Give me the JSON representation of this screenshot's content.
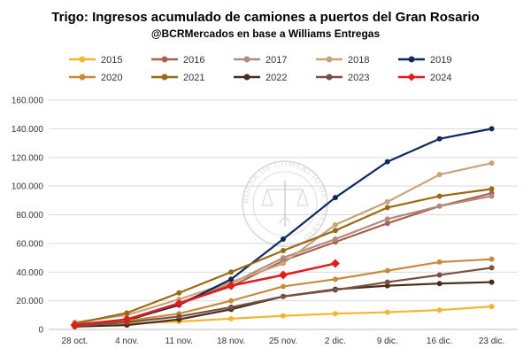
{
  "chart_data": {
    "type": "line",
    "title": "Trigo: Ingresos acumulado de camiones a puertos del Gran Rosario",
    "subtitle": "@BCRMercados en base a Williams Entregas",
    "xlabel": "",
    "ylabel": "",
    "categories": [
      "28 oct.",
      "4 nov.",
      "11 nov.",
      "18 nov.",
      "25 nov.",
      "2 dic.",
      "9 dic.",
      "16 dic.",
      "23 dic."
    ],
    "ylim": [
      0,
      160000
    ],
    "yticks": [
      0,
      20000,
      40000,
      60000,
      80000,
      100000,
      120000,
      140000,
      160000
    ],
    "ytick_labels": [
      "0",
      "20.000",
      "40.000",
      "60.000",
      "80.000",
      "100.000",
      "120.000",
      "140.000",
      "160.000"
    ],
    "grid": "horizontal",
    "legend": "top",
    "watermark": "BOLSA DE COMERCIO DE ROSARIO",
    "series": [
      {
        "name": "2015",
        "color": "#f2b632",
        "marker": "circle",
        "values": [
          2000,
          4000,
          5500,
          7500,
          9500,
          11000,
          12000,
          13500,
          16000
        ]
      },
      {
        "name": "2016",
        "color": "#a8614c",
        "marker": "circle",
        "values": [
          3000,
          6000,
          18000,
          30000,
          48000,
          61000,
          74000,
          86000,
          95000
        ]
      },
      {
        "name": "2017",
        "color": "#b28b80",
        "marker": "circle",
        "values": [
          3500,
          7000,
          18500,
          32000,
          50000,
          63000,
          77000,
          86000,
          93000
        ]
      },
      {
        "name": "2018",
        "color": "#c9a27a",
        "marker": "circle",
        "values": [
          5000,
          10000,
          21000,
          33000,
          46000,
          73000,
          89000,
          108000,
          116000
        ]
      },
      {
        "name": "2019",
        "color": "#0d2a5c",
        "marker": "circle",
        "values": [
          3000,
          6500,
          17000,
          35000,
          63000,
          92000,
          117000,
          133000,
          140000
        ]
      },
      {
        "name": "2020",
        "color": "#c98a3e",
        "marker": "circle",
        "values": [
          3000,
          6000,
          11000,
          20000,
          30000,
          35000,
          41000,
          47000,
          49000
        ]
      },
      {
        "name": "2021",
        "color": "#9a6a12",
        "marker": "circle",
        "values": [
          4000,
          11500,
          25500,
          40000,
          55000,
          69000,
          85000,
          93000,
          98000
        ]
      },
      {
        "name": "2022",
        "color": "#4a2e1d",
        "marker": "circle",
        "values": [
          2000,
          3000,
          7000,
          14000,
          23000,
          28000,
          30500,
          32000,
          33000
        ]
      },
      {
        "name": "2023",
        "color": "#7a5040",
        "marker": "circle",
        "values": [
          2500,
          5000,
          9000,
          15500,
          23000,
          27500,
          33000,
          38000,
          43000
        ]
      },
      {
        "name": "2024",
        "color": "#e31b1b",
        "marker": "diamond",
        "values": [
          3000,
          7000,
          18000,
          30500,
          38000,
          46000,
          null,
          null,
          null
        ]
      }
    ]
  }
}
